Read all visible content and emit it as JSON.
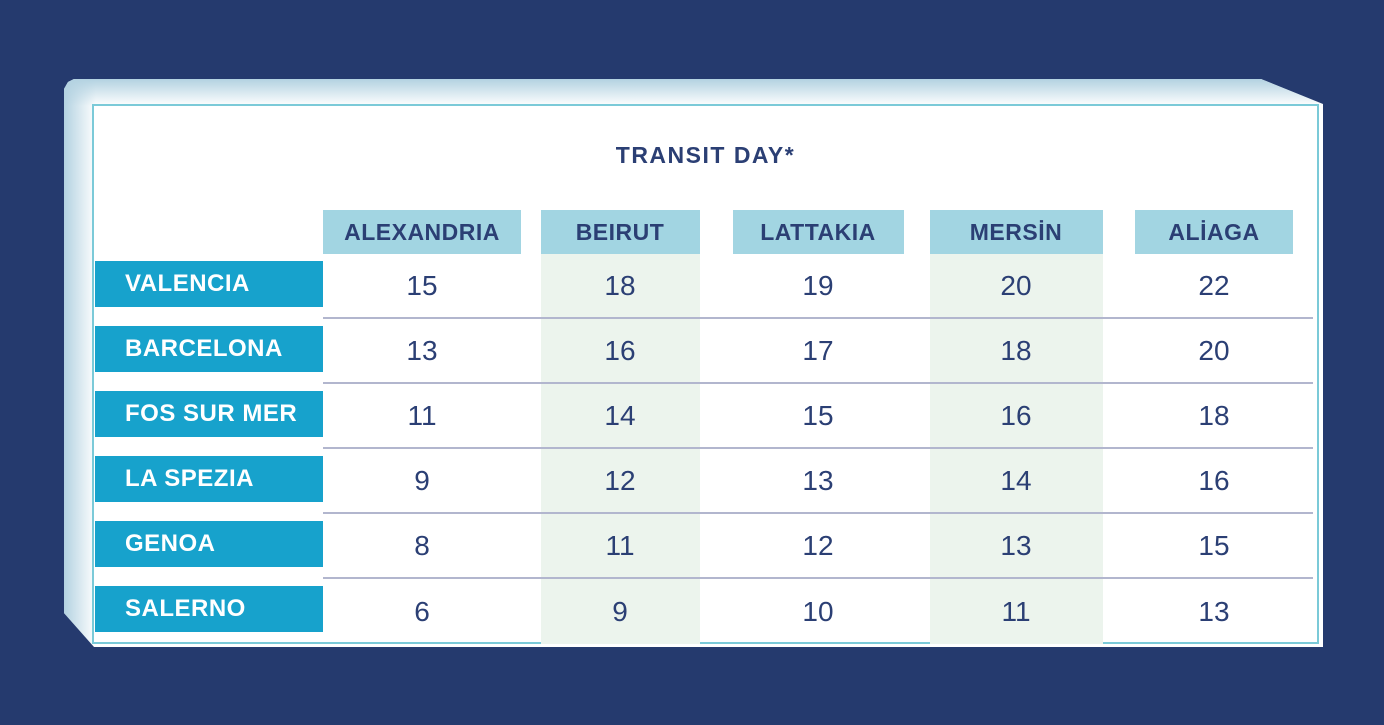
{
  "chart_data": {
    "type": "table",
    "title": "TRANSIT DAY*",
    "destination_ports": [
      "ALEXANDRIA",
      "BEIRUT",
      "LATTAKIA",
      "MERSİN",
      "ALİAGA"
    ],
    "origin_ports": [
      "VALENCIA",
      "BARCELONA",
      "FOS SUR MER",
      "LA SPEZIA",
      "GENOA",
      "SALERNO"
    ],
    "rows": [
      {
        "label": "VALENCIA",
        "values": [
          15,
          18,
          19,
          20,
          22
        ]
      },
      {
        "label": "BARCELONA",
        "values": [
          13,
          16,
          17,
          18,
          20
        ]
      },
      {
        "label": "FOS SUR MER",
        "values": [
          11,
          14,
          15,
          16,
          18
        ]
      },
      {
        "label": "LA SPEZIA",
        "values": [
          9,
          12,
          13,
          14,
          16
        ]
      },
      {
        "label": "GENOA",
        "values": [
          8,
          11,
          12,
          13,
          15
        ]
      },
      {
        "label": "SALERNO",
        "values": [
          6,
          9,
          10,
          11,
          13
        ]
      }
    ],
    "highlighted_columns": [
      "BEIRUT",
      "MERSİN"
    ],
    "legend_position": "none",
    "grid": "horizontal-separators"
  },
  "colors": {
    "background": "#253a6e",
    "card_border": "#7bcad8",
    "column_header_bg": "#a2d5e2",
    "row_header_bg": "#17a2cc",
    "stripe_bg": "#ecf4ed",
    "separator": "#b2b6ce",
    "text_navy": "#2b3f74"
  }
}
